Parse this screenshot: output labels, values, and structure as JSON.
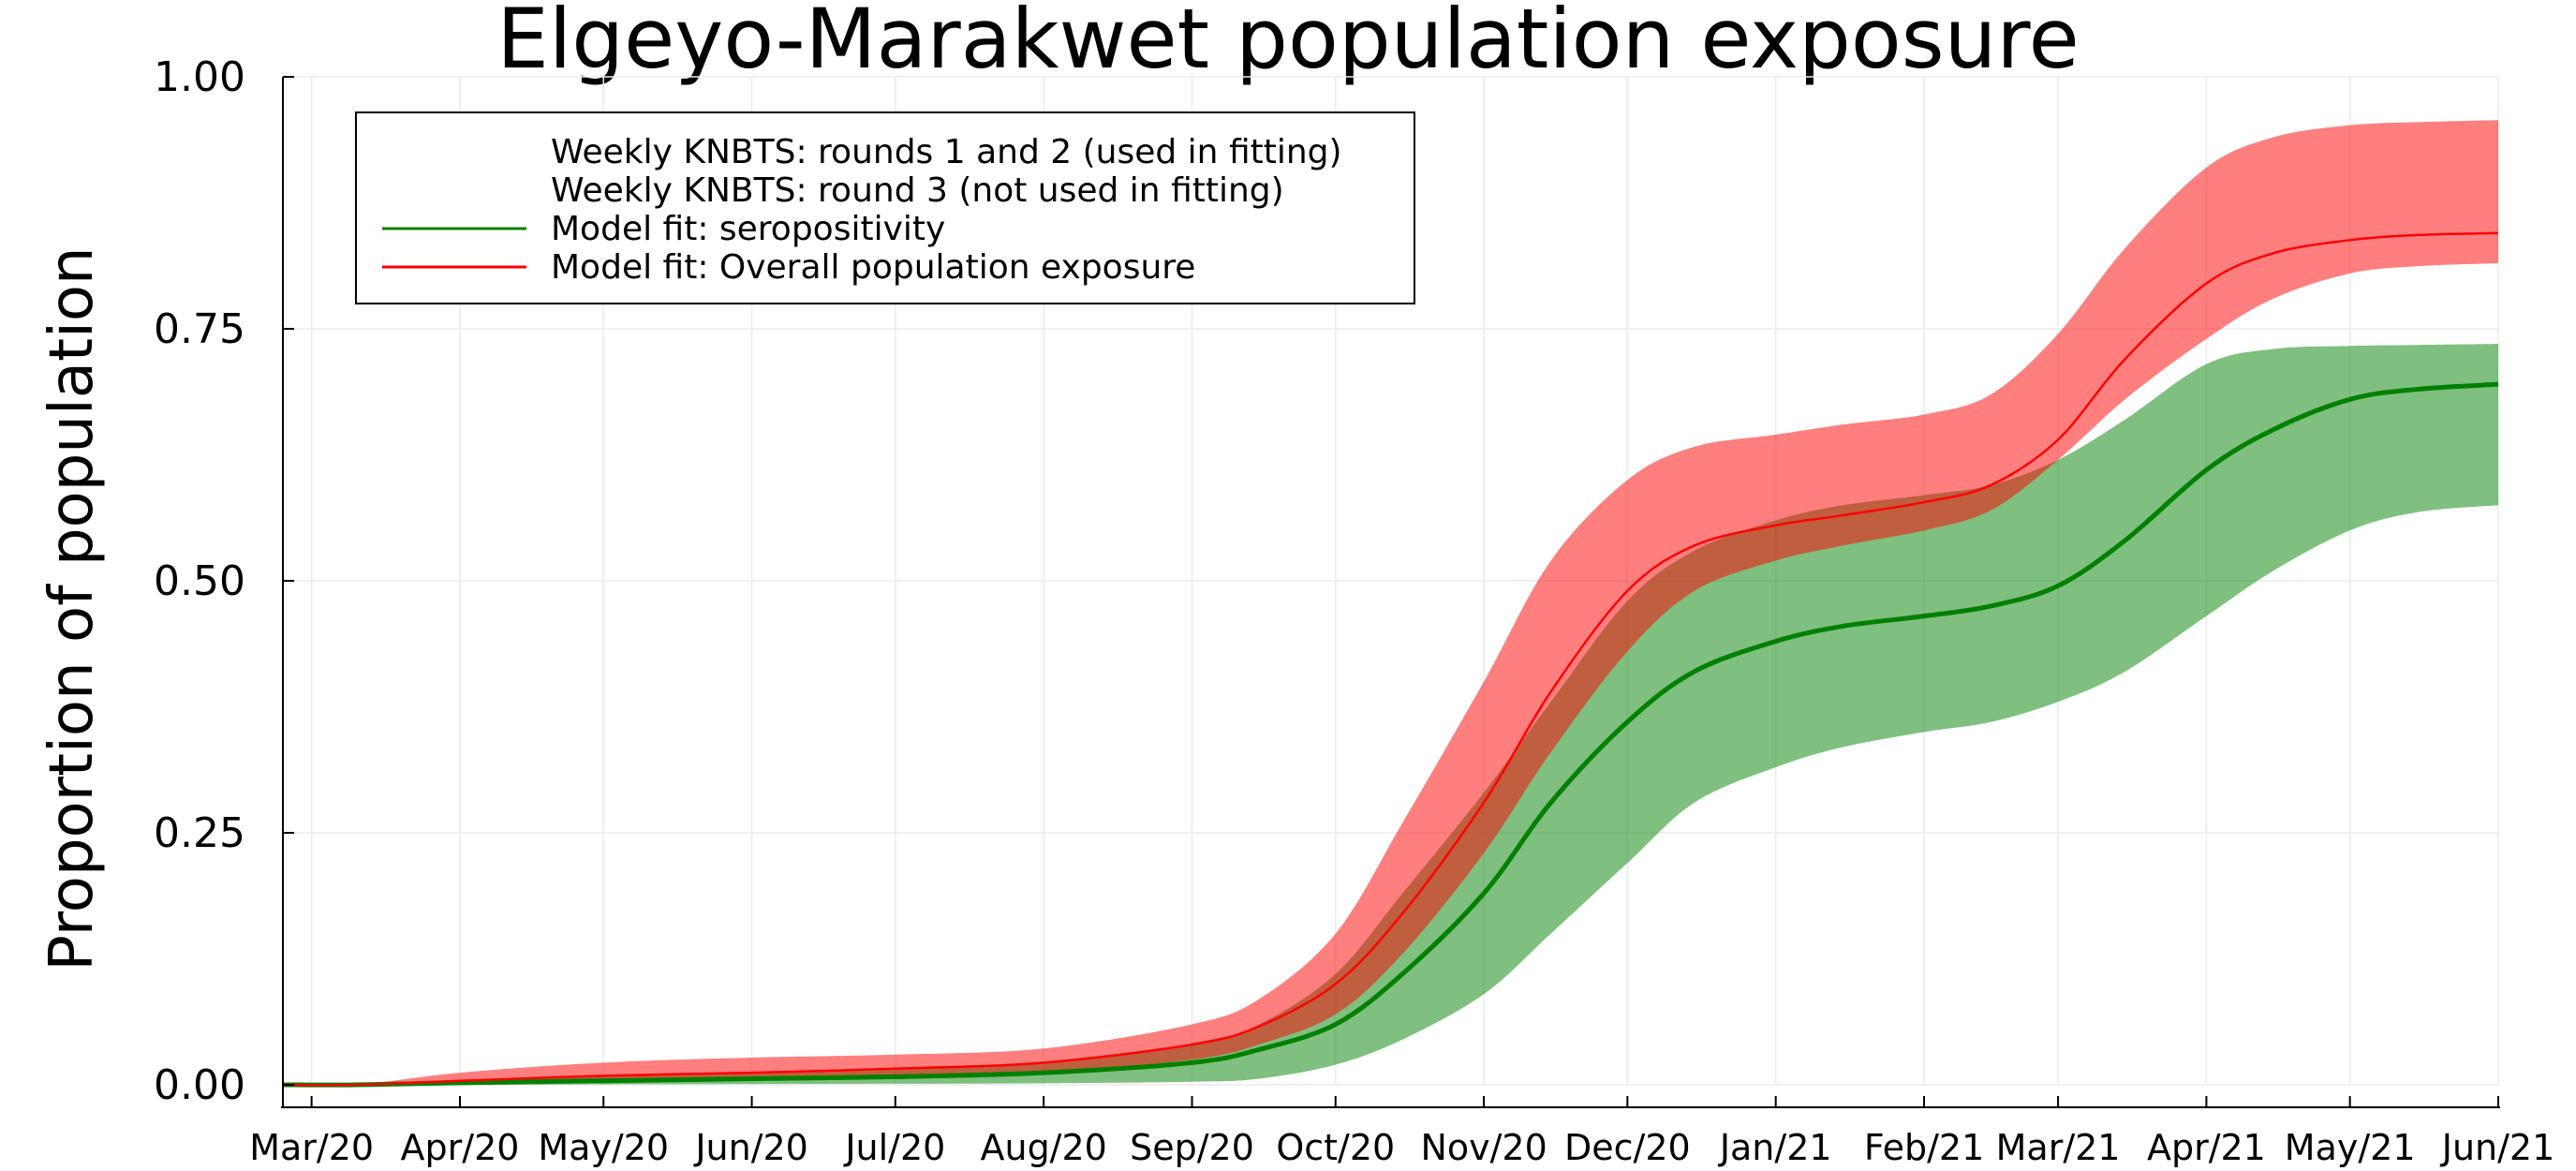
{
  "chart_data": {
    "type": "area",
    "title": "Elgeyo-Marakwet population exposure",
    "xlabel": "",
    "ylabel": "Proportion of population",
    "ylim": [
      0,
      1
    ],
    "yticks": [
      0.0,
      0.25,
      0.5,
      0.75,
      1.0
    ],
    "ytick_labels": [
      "0.00",
      "0.25",
      "0.50",
      "0.75",
      "1.00"
    ],
    "xlim": [
      "2020-02-24",
      "2021-06-01"
    ],
    "xticks": [
      "2020-03-01",
      "2020-04-01",
      "2020-05-01",
      "2020-06-01",
      "2020-07-01",
      "2020-08-01",
      "2020-09-01",
      "2020-10-01",
      "2020-11-01",
      "2020-12-01",
      "2021-01-01",
      "2021-02-01",
      "2021-03-01",
      "2021-04-01",
      "2021-05-01",
      "2021-06-01"
    ],
    "xtick_labels": [
      "Mar/20",
      "Apr/20",
      "May/20",
      "Jun/20",
      "Jul/20",
      "Aug/20",
      "Sep/20",
      "Oct/20",
      "Nov/20",
      "Dec/20",
      "Jan/21",
      "Feb/21",
      "Mar/21",
      "Apr/21",
      "May/21",
      "Jun/21"
    ],
    "grid": true,
    "legend_position": "top-left",
    "legend": [
      {
        "label": "Weekly KNBTS: rounds 1 and 2 (used in fitting)",
        "marker": "none"
      },
      {
        "label": "Weekly KNBTS: round 3 (not used in fitting)",
        "marker": "none"
      },
      {
        "label": "Model fit: seropositivity",
        "color": "#008000",
        "marker": "line"
      },
      {
        "label": "Model fit: Overall population exposure",
        "color": "#ff0000",
        "marker": "line"
      }
    ],
    "x": [
      "2020-02-24",
      "2020-03-10",
      "2020-04-01",
      "2020-05-01",
      "2020-06-01",
      "2020-07-01",
      "2020-08-01",
      "2020-09-01",
      "2020-09-15",
      "2020-10-01",
      "2020-10-15",
      "2020-11-01",
      "2020-11-15",
      "2020-12-01",
      "2020-12-15",
      "2021-01-01",
      "2021-01-15",
      "2021-02-01",
      "2021-02-15",
      "2021-03-01",
      "2021-03-15",
      "2021-04-01",
      "2021-04-15",
      "2021-05-01",
      "2021-05-15",
      "2021-06-01"
    ],
    "series": [
      {
        "name": "Model fit: seropositivity",
        "color": "#008000",
        "band_color": "#008000",
        "band_opacity": 0.5,
        "line_width": 5,
        "values": [
          0.0,
          0.0,
          0.002,
          0.004,
          0.006,
          0.008,
          0.012,
          0.022,
          0.035,
          0.06,
          0.11,
          0.19,
          0.28,
          0.36,
          0.41,
          0.44,
          0.455,
          0.465,
          0.475,
          0.495,
          0.54,
          0.61,
          0.65,
          0.68,
          0.69,
          0.695
        ],
        "lower": [
          0.0,
          0.0,
          0.0,
          0.0005,
          0.0008,
          0.001,
          0.0015,
          0.003,
          0.006,
          0.02,
          0.045,
          0.09,
          0.15,
          0.22,
          0.28,
          0.315,
          0.335,
          0.35,
          0.36,
          0.38,
          0.41,
          0.465,
          0.51,
          0.55,
          0.568,
          0.575
        ],
        "upper": [
          0.0,
          0.0,
          0.005,
          0.008,
          0.011,
          0.015,
          0.022,
          0.04,
          0.06,
          0.11,
          0.19,
          0.29,
          0.38,
          0.48,
          0.53,
          0.56,
          0.575,
          0.585,
          0.595,
          0.62,
          0.66,
          0.715,
          0.73,
          0.733,
          0.734,
          0.735
        ]
      },
      {
        "name": "Model fit: Overall population exposure",
        "color": "#ff0000",
        "band_color": "#ff0000",
        "band_opacity": 0.5,
        "line_width": 2.5,
        "values": [
          0.0,
          0.0,
          0.004,
          0.009,
          0.012,
          0.016,
          0.022,
          0.04,
          0.058,
          0.1,
          0.17,
          0.28,
          0.39,
          0.49,
          0.535,
          0.555,
          0.565,
          0.578,
          0.595,
          0.64,
          0.72,
          0.795,
          0.825,
          0.838,
          0.843,
          0.845
        ],
        "lower": [
          0.0,
          0.0,
          0.001,
          0.004,
          0.006,
          0.008,
          0.012,
          0.025,
          0.04,
          0.07,
          0.13,
          0.23,
          0.33,
          0.43,
          0.49,
          0.52,
          0.535,
          0.55,
          0.57,
          0.62,
          0.68,
          0.74,
          0.78,
          0.805,
          0.812,
          0.815
        ],
        "upper": [
          0.0,
          0.0,
          0.012,
          0.022,
          0.027,
          0.03,
          0.036,
          0.06,
          0.085,
          0.15,
          0.26,
          0.4,
          0.52,
          0.6,
          0.633,
          0.645,
          0.655,
          0.665,
          0.685,
          0.745,
          0.83,
          0.91,
          0.94,
          0.952,
          0.955,
          0.957
        ]
      }
    ]
  }
}
